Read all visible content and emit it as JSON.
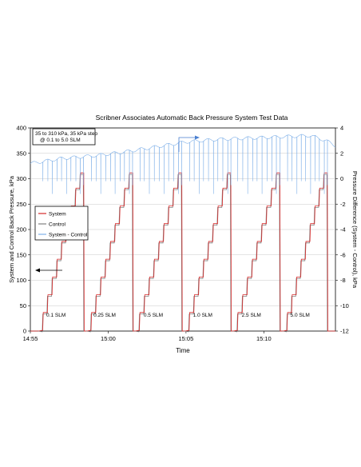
{
  "chart_data": {
    "type": "line",
    "title": "Scribner Associates Automatic Back Pressure System Test Data",
    "xlabel": "Time",
    "ylabel": "System and Control Back Pressure, kPa",
    "y2label": "Pressure Difference (System - Control), kPa",
    "ylim": [
      0,
      400
    ],
    "y2lim": [
      -12,
      4
    ],
    "y_ticks": [
      "0",
      "50",
      "100",
      "150",
      "200",
      "250",
      "300",
      "350",
      "400"
    ],
    "y2_ticks": [
      "-12",
      "-10",
      "-8",
      "-6",
      "-4",
      "-2",
      "0",
      "2",
      "4"
    ],
    "x_ticks": [
      "14:55",
      "15:00",
      "15:05",
      "15:10"
    ],
    "x_tick_minutes": [
      0,
      5,
      10,
      15
    ],
    "xlim_minutes": [
      0,
      19.6
    ],
    "grid": "horizontal",
    "legend_placement": "left-middle",
    "info_box": "35 to 310 kPa, 35 kPa step\n@ 0.1 to 5.0 SLM",
    "series": [
      {
        "name": "System",
        "color": "#d62a2a"
      },
      {
        "name": "Control",
        "color": "#808080"
      },
      {
        "name": "System - Control",
        "color": "#7fb0e8"
      }
    ],
    "cycles": [
      {
        "label": "0.1 SLM",
        "start_min": 0.5,
        "end_min": 3.4
      },
      {
        "label": "0.25 SLM",
        "start_min": 3.6,
        "end_min": 6.55
      },
      {
        "label": "0.5 SLM",
        "start_min": 6.7,
        "end_min": 9.7
      },
      {
        "label": "1.0 SLM",
        "start_min": 9.9,
        "end_min": 12.85
      },
      {
        "label": "2.5 SLM",
        "start_min": 13.0,
        "end_min": 16.0
      },
      {
        "label": "5.0 SLM",
        "start_min": 16.2,
        "end_min": 19.05
      }
    ],
    "pressure_steps_kpa": [
      0,
      35,
      70,
      105,
      140,
      175,
      210,
      245,
      280,
      310
    ],
    "difference_baseline_kpa": [
      [
        0.0,
        1.2
      ],
      [
        2.0,
        1.6
      ],
      [
        4.0,
        1.8
      ],
      [
        6.0,
        2.1
      ],
      [
        8.0,
        2.5
      ],
      [
        10.0,
        2.9
      ],
      [
        12.0,
        3.1
      ],
      [
        14.0,
        3.2
      ],
      [
        16.0,
        3.3
      ],
      [
        18.0,
        3.4
      ],
      [
        19.0,
        3.0
      ],
      [
        19.6,
        2.6
      ]
    ],
    "arrow_left_target": "left-axis",
    "arrow_right_target": "right-axis"
  }
}
